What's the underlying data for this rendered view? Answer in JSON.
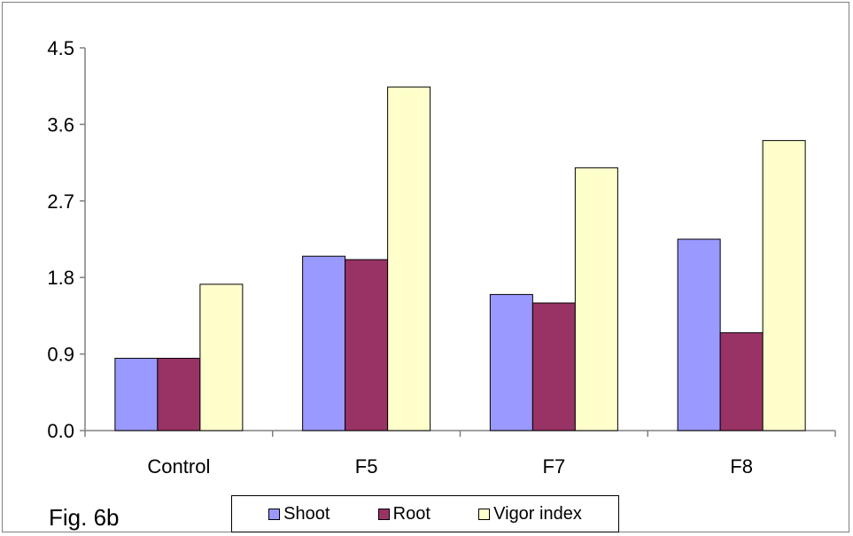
{
  "chart_data": {
    "type": "bar",
    "categories": [
      "Control",
      "F5",
      "F7",
      "F8"
    ],
    "series": [
      {
        "name": "Shoot",
        "color": "#9999ff",
        "values": [
          0.85,
          2.05,
          1.6,
          2.25
        ]
      },
      {
        "name": "Root",
        "color": "#993366",
        "values": [
          0.85,
          2.01,
          1.5,
          1.15
        ]
      },
      {
        "name": "Vigor index",
        "color": "#ffffcc",
        "values": [
          1.72,
          4.04,
          3.09,
          3.41
        ]
      }
    ],
    "ylim": [
      0,
      4.5
    ],
    "yticks": [
      "0.0",
      "0.9",
      "1.8",
      "2.7",
      "3.6",
      "4.5"
    ],
    "grid": false,
    "legend_position": "bottom"
  },
  "figure_label": "Fig. 6b"
}
